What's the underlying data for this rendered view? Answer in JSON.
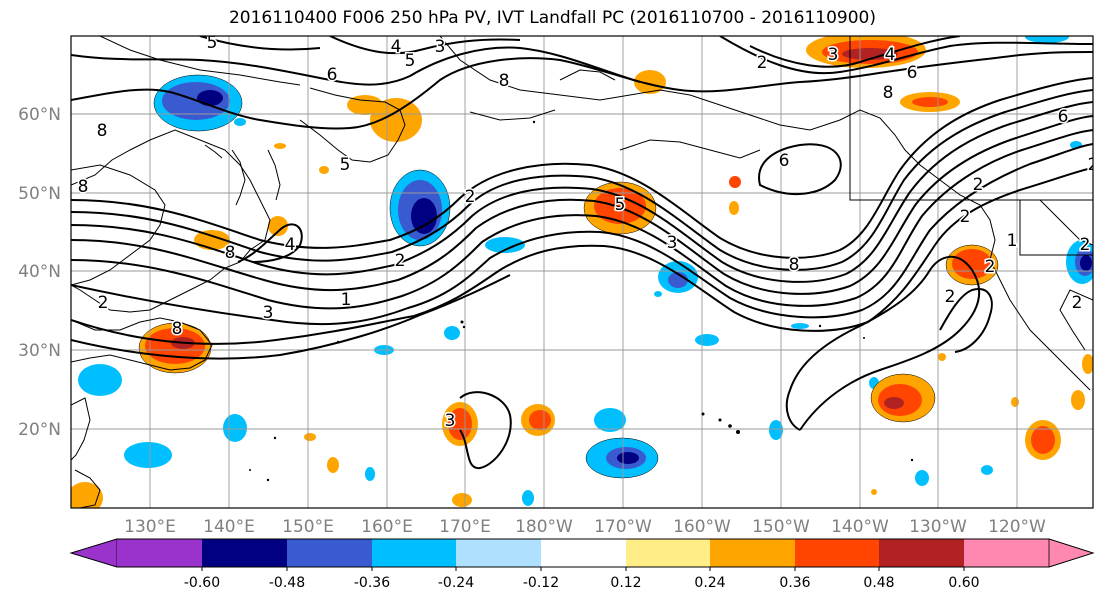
{
  "title": "2016110400 F006 250 hPa PV, IVT Landfall PC (2016110700 - 2016110900)",
  "map": {
    "lat_labels": [
      "60°N",
      "50°N",
      "40°N",
      "30°N",
      "20°N"
    ],
    "lon_labels": [
      "130°E",
      "140°E",
      "150°E",
      "160°E",
      "170°E",
      "180°W",
      "170°W",
      "160°W",
      "150°W",
      "140°W",
      "130°W",
      "120°W"
    ],
    "contour_labels": [
      "5",
      "4",
      "3",
      "5",
      "6",
      "2",
      "3",
      "4",
      "6",
      "8",
      "8",
      "6",
      "8",
      "5",
      "2",
      "8",
      "6",
      "5",
      "4",
      "3",
      "2",
      "1",
      "8",
      "2",
      "3",
      "2",
      "2",
      "2",
      "1",
      "2",
      "8",
      "8",
      "2",
      "3",
      "2",
      "2"
    ]
  },
  "colorbar": {
    "tick_labels": [
      "-0.60",
      "-0.48",
      "-0.36",
      "-0.24",
      "-0.12",
      "0.12",
      "0.24",
      "0.36",
      "0.48",
      "0.60"
    ],
    "colors": {
      "under": "#9933cc",
      "bins": [
        "#000080",
        "#3a5bcf",
        "#00bfff",
        "#b0e0ff",
        "#ffffff",
        "#ffee88",
        "#ffa500",
        "#ff4500",
        "#b22222"
      ],
      "over": "#ff88b0"
    }
  }
}
